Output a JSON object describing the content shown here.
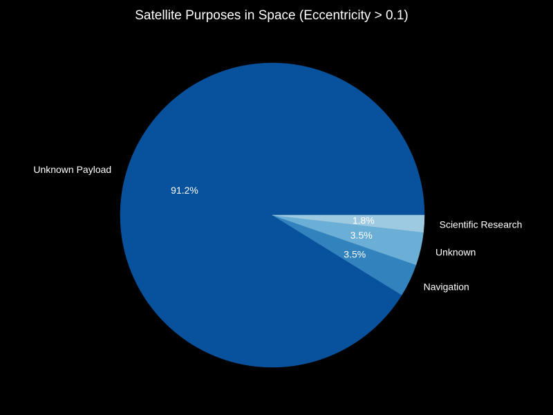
{
  "chart_data": {
    "type": "pie",
    "title": "Satellite Purposes in Space (Eccentricity > 0.1)",
    "start_angle": "0°, counterclockwise",
    "background_color": "#000000",
    "text_color": "#ffffff",
    "slices": [
      {
        "label": "Unknown Payload",
        "value": 91.2,
        "percent_label": "91.2%",
        "color": "#08519c"
      },
      {
        "label": "Navigation",
        "value": 3.5,
        "percent_label": "3.5%",
        "color": "#3182bd"
      },
      {
        "label": "Unknown",
        "value": 3.5,
        "percent_label": "3.5%",
        "color": "#6baed6"
      },
      {
        "label": "Scientific Research",
        "value": 1.8,
        "percent_label": "1.8%",
        "color": "#9ecae1"
      }
    ]
  }
}
